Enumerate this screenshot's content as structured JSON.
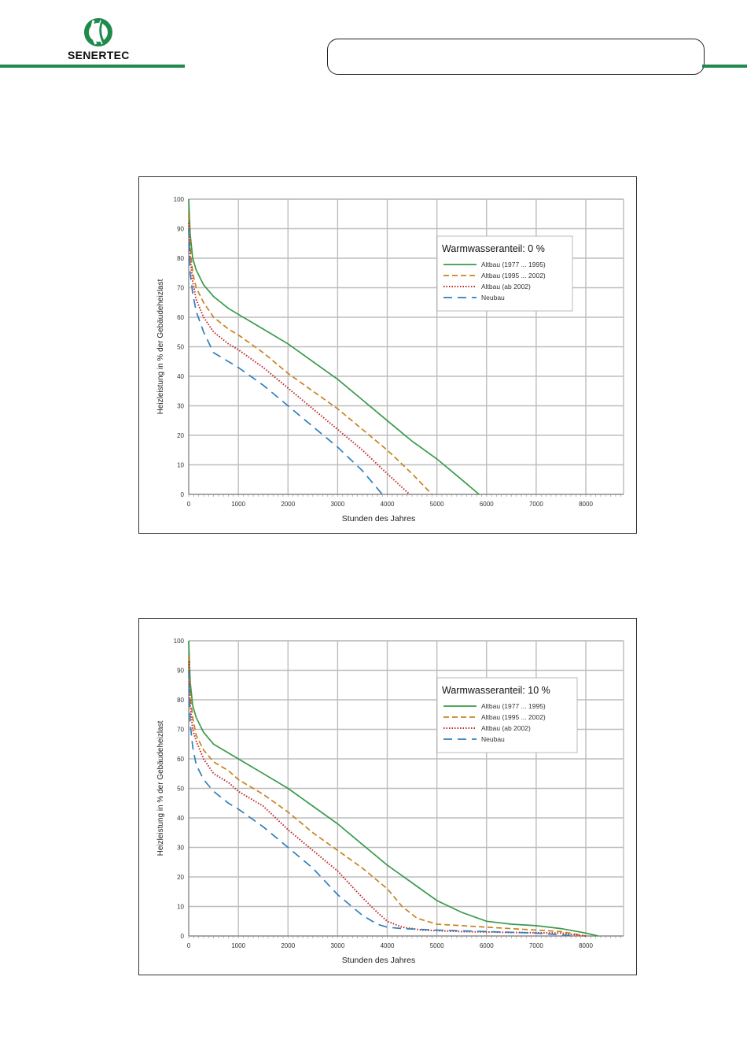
{
  "header": {
    "logo_text": "SENERTEC",
    "brand_color": "#1f8a4c",
    "logo_icon": "senertec-logo-icon"
  },
  "chart_data": [
    {
      "type": "line",
      "title": "",
      "xlabel": "Stunden des Jahres",
      "ylabel": "Heizleistung in % der Gebäudeheizlast",
      "xlim": [
        0,
        8760
      ],
      "ylim": [
        0,
        100
      ],
      "x_ticks": [
        0,
        1000,
        2000,
        3000,
        4000,
        5000,
        6000,
        7000,
        8000
      ],
      "y_ticks": [
        0,
        10,
        20,
        30,
        40,
        50,
        60,
        70,
        80,
        90,
        100
      ],
      "grid": true,
      "legend": {
        "title": "Warmwasseranteil: 0 %",
        "placement": "top-right"
      },
      "series": [
        {
          "name": "Altbau (1977 ... 1995)",
          "color": "#3a9a4a",
          "dash": "solid",
          "x": [
            0,
            30,
            80,
            150,
            300,
            500,
            800,
            1000,
            1500,
            2000,
            2500,
            3000,
            3500,
            4000,
            4500,
            5000,
            5500,
            5850
          ],
          "y": [
            100,
            88,
            80,
            76,
            71,
            67,
            63,
            61,
            56,
            51,
            45,
            39,
            32,
            25,
            18,
            12,
            5,
            0
          ]
        },
        {
          "name": "Altbau (1995 ... 2002)",
          "color": "#c9821f",
          "dash": "dashed",
          "x": [
            0,
            30,
            80,
            150,
            300,
            500,
            800,
            1000,
            1500,
            2000,
            2500,
            3000,
            3500,
            4000,
            4500,
            4900
          ],
          "y": [
            95,
            84,
            75,
            70,
            65,
            60,
            56,
            54,
            48,
            41,
            35,
            29,
            22,
            15,
            7,
            0
          ]
        },
        {
          "name": "Altbau (ab 2002)",
          "color": "#c0282d",
          "dash": "dotted",
          "x": [
            0,
            30,
            80,
            150,
            300,
            500,
            800,
            1000,
            1500,
            2000,
            2500,
            3000,
            3500,
            4000,
            4450
          ],
          "y": [
            92,
            80,
            72,
            66,
            60,
            55,
            51,
            49,
            43,
            36,
            29,
            22,
            15,
            7,
            0
          ]
        },
        {
          "name": "Neubau",
          "color": "#2f7fbf",
          "dash": "longdash",
          "x": [
            0,
            30,
            80,
            150,
            300,
            500,
            800,
            1000,
            1500,
            2000,
            2500,
            3000,
            3500,
            3900
          ],
          "y": [
            90,
            75,
            68,
            62,
            55,
            48,
            45,
            43,
            37,
            30,
            23,
            16,
            8,
            0
          ]
        }
      ]
    },
    {
      "type": "line",
      "title": "",
      "xlabel": "Stunden des Jahres",
      "ylabel": "Heizleistung in % der Gebäudeheizlast",
      "xlim": [
        0,
        8760
      ],
      "ylim": [
        0,
        100
      ],
      "x_ticks": [
        0,
        1000,
        2000,
        3000,
        4000,
        5000,
        6000,
        7000,
        8000
      ],
      "y_ticks": [
        0,
        10,
        20,
        30,
        40,
        50,
        60,
        70,
        80,
        90,
        100
      ],
      "grid": true,
      "legend": {
        "title": "Warmwasseranteil: 10 %",
        "placement": "top-right"
      },
      "series": [
        {
          "name": "Altbau (1977 ... 1995)",
          "color": "#3a9a4a",
          "dash": "solid",
          "x": [
            0,
            30,
            80,
            150,
            300,
            500,
            800,
            1000,
            1500,
            2000,
            2500,
            3000,
            3500,
            4000,
            4500,
            5000,
            5500,
            6000,
            6500,
            7000,
            7500,
            8000,
            8250
          ],
          "y": [
            100,
            86,
            78,
            74,
            69,
            65,
            62,
            60,
            55,
            50,
            44,
            38,
            31,
            24,
            18,
            12,
            8,
            5,
            4,
            3.5,
            2.5,
            1,
            0
          ]
        },
        {
          "name": "Altbau (1995 ... 2002)",
          "color": "#c9821f",
          "dash": "dashed",
          "x": [
            0,
            30,
            80,
            150,
            300,
            500,
            800,
            1000,
            1500,
            2000,
            2500,
            3000,
            3500,
            4000,
            4300,
            4600,
            5000,
            5500,
            6000,
            7000,
            7500,
            8000
          ],
          "y": [
            95,
            82,
            74,
            68,
            63,
            59,
            56,
            53,
            48,
            42,
            35,
            29,
            23,
            16,
            10,
            6,
            4,
            3.5,
            3,
            2,
            1.5,
            0
          ]
        },
        {
          "name": "Altbau (ab 2002)",
          "color": "#c0282d",
          "dash": "dotted",
          "x": [
            0,
            30,
            80,
            150,
            300,
            500,
            800,
            1000,
            1500,
            2000,
            2500,
            3000,
            3500,
            3800,
            4000,
            4300,
            4700,
            5500,
            6500,
            7500,
            8000
          ],
          "y": [
            93,
            78,
            70,
            66,
            60,
            55,
            52,
            49,
            44,
            36,
            29,
            22,
            13,
            8,
            5,
            3,
            2,
            1.5,
            1.2,
            1,
            0
          ]
        },
        {
          "name": "Neubau",
          "color": "#2f7fbf",
          "dash": "longdash",
          "x": [
            0,
            30,
            80,
            150,
            300,
            500,
            800,
            1000,
            1500,
            2000,
            2500,
            3000,
            3500,
            3800,
            4000,
            4300,
            5000,
            6000,
            7000,
            7800
          ],
          "y": [
            90,
            72,
            64,
            58,
            53,
            49,
            45,
            43,
            37,
            30,
            23,
            14,
            7,
            4,
            3,
            2.5,
            2,
            1.5,
            1,
            0
          ]
        }
      ]
    }
  ]
}
